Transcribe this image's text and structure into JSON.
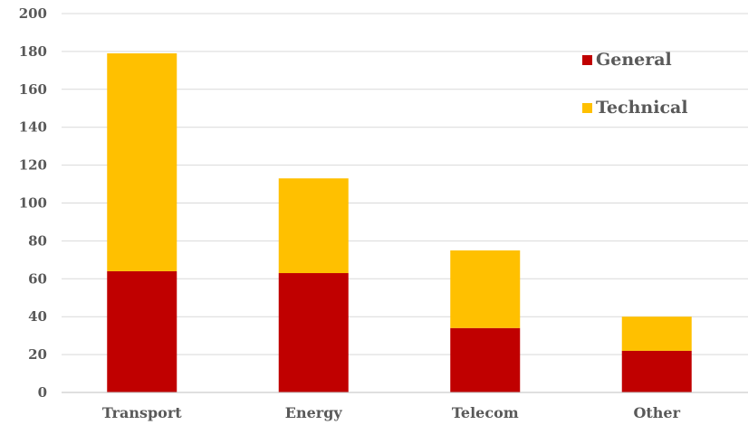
{
  "chart_data": {
    "type": "bar",
    "stacked": true,
    "categories": [
      "Transport",
      "Energy",
      "Telecom",
      "Other"
    ],
    "series": [
      {
        "name": "General",
        "values": [
          64,
          63,
          34,
          22
        ],
        "color": "#c00000"
      },
      {
        "name": "Technical",
        "values": [
          115,
          50,
          41,
          18
        ],
        "color": "#ffc000"
      }
    ],
    "title": "",
    "xlabel": "",
    "ylabel": "",
    "ylim": [
      0,
      200
    ],
    "yticks": [
      0,
      20,
      40,
      60,
      80,
      100,
      120,
      140,
      160,
      180,
      200
    ],
    "grid": true,
    "legend_position": "top-right"
  }
}
